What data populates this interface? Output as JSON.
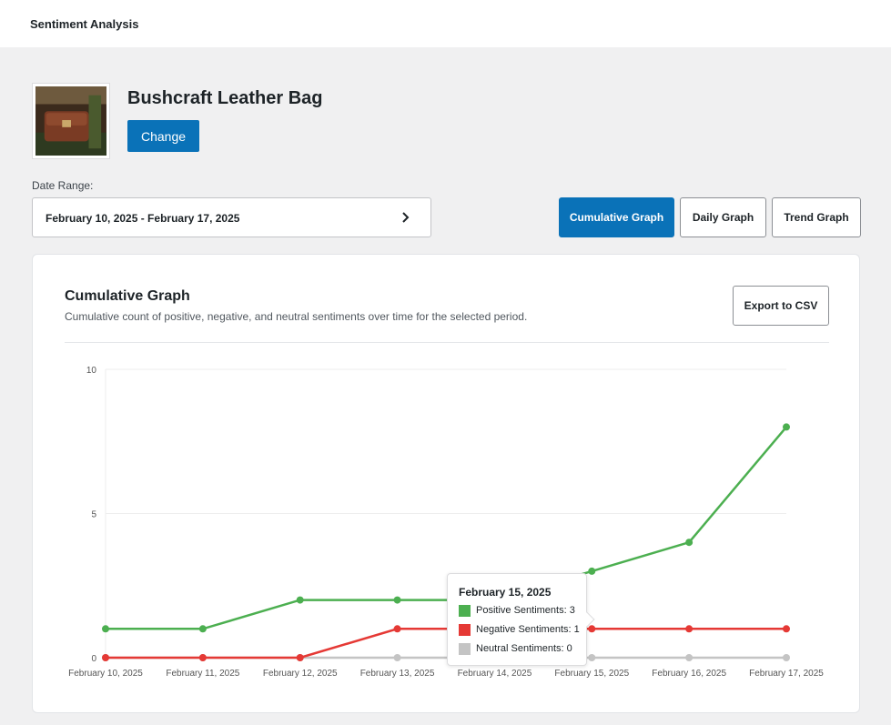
{
  "header": {
    "title": "Sentiment Analysis"
  },
  "product": {
    "name": "Bushcraft Leather Bag",
    "change_label": "Change"
  },
  "date_range": {
    "label": "Date Range:",
    "value": "February 10, 2025 - February 17, 2025",
    "icon": "chevron-right-icon"
  },
  "graph_tabs": [
    {
      "label": "Cumulative Graph",
      "active": true
    },
    {
      "label": "Daily Graph",
      "active": false
    },
    {
      "label": "Trend Graph",
      "active": false
    }
  ],
  "card": {
    "title": "Cumulative Graph",
    "subtitle": "Cumulative count of positive, negative, and neutral sentiments over time for the selected period.",
    "export_label": "Export to CSV"
  },
  "chart_data": {
    "type": "line",
    "title": "",
    "xlabel": "",
    "ylabel": "",
    "x": [
      "February 10, 2025",
      "February 11, 2025",
      "February 12, 2025",
      "February 13, 2025",
      "February 14, 2025",
      "February 15, 2025",
      "February 16, 2025",
      "February 17, 2025"
    ],
    "ylim": [
      0,
      10
    ],
    "yticks": [
      "0",
      "5",
      "10"
    ],
    "grid": true,
    "series": [
      {
        "name": "Positive Sentiments",
        "color": "#4caf50",
        "values": [
          1,
          1,
          2,
          2,
          2,
          3,
          4,
          8
        ]
      },
      {
        "name": "Negative Sentiments",
        "color": "#e53935",
        "values": [
          0,
          0,
          0,
          1,
          1,
          1,
          1,
          1
        ]
      },
      {
        "name": "Neutral Sentiments",
        "color": "#c4c4c4",
        "values": [
          0,
          0,
          0,
          0,
          0,
          0,
          0,
          0
        ]
      }
    ]
  },
  "tooltip": {
    "title": "February 15, 2025",
    "rows": [
      {
        "label": "Positive Sentiments: 3",
        "color": "#4caf50"
      },
      {
        "label": "Negative Sentiments: 1",
        "color": "#e53935"
      },
      {
        "label": "Neutral Sentiments: 0",
        "color": "#c4c4c4"
      }
    ]
  }
}
